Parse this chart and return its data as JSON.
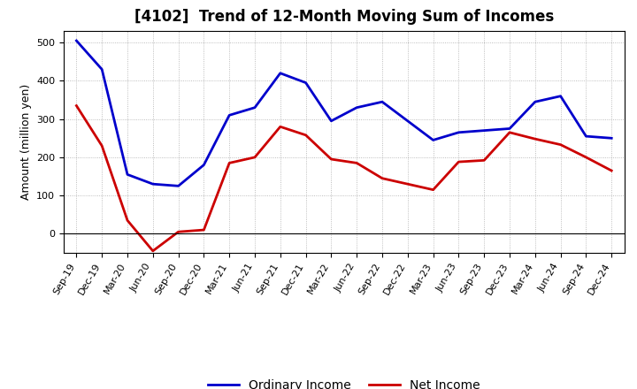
{
  "title": "[4102]  Trend of 12-Month Moving Sum of Incomes",
  "ylabel": "Amount (million yen)",
  "xlabel": "",
  "x_labels": [
    "Sep-19",
    "Dec-19",
    "Mar-20",
    "Jun-20",
    "Sep-20",
    "Dec-20",
    "Mar-21",
    "Jun-21",
    "Sep-21",
    "Dec-21",
    "Mar-22",
    "Jun-22",
    "Sep-22",
    "Dec-22",
    "Mar-23",
    "Jun-23",
    "Sep-23",
    "Dec-23",
    "Mar-24",
    "Jun-24",
    "Sep-24",
    "Dec-24"
  ],
  "ordinary_income": [
    505,
    430,
    155,
    130,
    125,
    180,
    310,
    330,
    420,
    395,
    295,
    330,
    345,
    295,
    245,
    265,
    270,
    275,
    345,
    360,
    255,
    250
  ],
  "net_income": [
    335,
    230,
    35,
    -45,
    5,
    10,
    185,
    200,
    280,
    258,
    195,
    185,
    145,
    130,
    115,
    188,
    192,
    265,
    248,
    233,
    200,
    165
  ],
  "ordinary_color": "#0000cc",
  "net_color": "#cc0000",
  "ylim": [
    -50,
    530
  ],
  "yticks": [
    0,
    100,
    200,
    300,
    400,
    500
  ],
  "background_color": "#ffffff",
  "grid_color": "#aaaaaa",
  "line_width": 2.0,
  "title_fontsize": 12,
  "label_fontsize": 8,
  "ylabel_fontsize": 9,
  "legend_ordinary": "Ordinary Income",
  "legend_net": "Net Income",
  "legend_fontsize": 10
}
